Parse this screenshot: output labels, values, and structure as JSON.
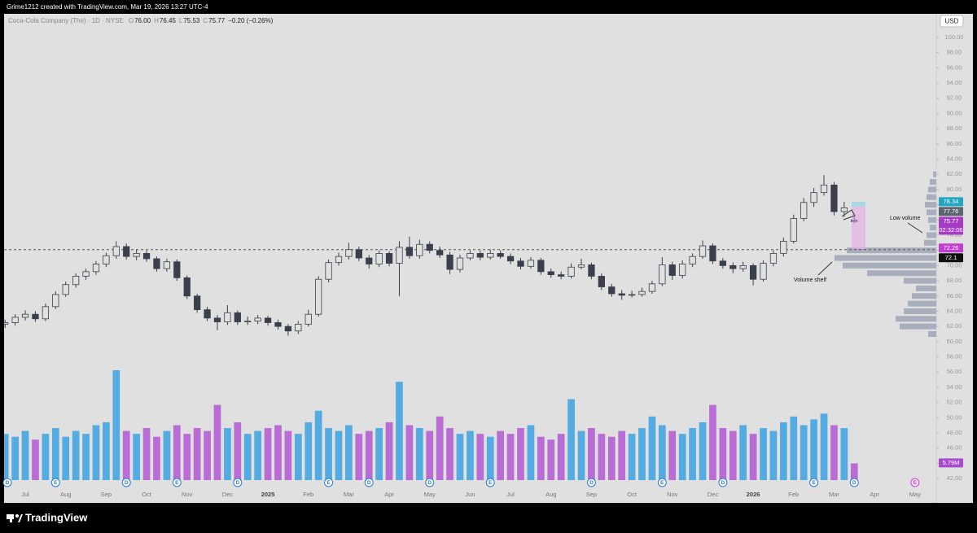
{
  "header": {
    "text": "Grime1212 created with TradingView.com, Mar 19, 2026 13:27 UTC-4"
  },
  "footer": {
    "brand": "TradingView"
  },
  "chart_data": {
    "type": "candlestick",
    "title": "Coca-Cola Company (The) · 1D · NYSE",
    "legend": [
      {
        "key": "O",
        "value": "76.00"
      },
      {
        "key": "H",
        "value": "76.45"
      },
      {
        "key": "L",
        "value": "75.53"
      },
      {
        "key": "C",
        "value": "75.77"
      }
    ],
    "change": "−0.20 (−0.26%)",
    "currency": "USD",
    "categories": [
      null,
      null,
      "Jul",
      null,
      null,
      null,
      "Aug",
      null,
      null,
      null,
      "Sep",
      null,
      null,
      null,
      "Oct",
      null,
      null,
      null,
      "Nov",
      null,
      null,
      null,
      "Dec",
      null,
      null,
      null,
      "2025",
      null,
      null,
      null,
      "Feb",
      null,
      null,
      null,
      "Mar",
      null,
      null,
      null,
      "Apr",
      null,
      null,
      null,
      "May",
      null,
      null,
      null,
      "Jun",
      null,
      null,
      null,
      "Jul",
      null,
      null,
      null,
      "Aug",
      null,
      null,
      null,
      "Sep",
      null,
      null,
      null,
      "Oct",
      null,
      null,
      null,
      "Nov",
      null,
      null,
      null,
      "Dec",
      null,
      null,
      null,
      "2026",
      null,
      null,
      null,
      "Feb",
      null,
      null,
      null,
      "Mar",
      null,
      null,
      null,
      "Apr",
      null,
      null,
      null,
      "May"
    ],
    "ohlc": [
      [
        62.3,
        62.9,
        61.8,
        62.5
      ],
      [
        62.5,
        63.6,
        62.1,
        63.2
      ],
      [
        63.2,
        64.1,
        62.8,
        63.6
      ],
      [
        63.6,
        64.0,
        62.6,
        63.0
      ],
      [
        63.0,
        65.0,
        62.7,
        64.6
      ],
      [
        64.6,
        66.6,
        64.3,
        66.2
      ],
      [
        66.2,
        67.9,
        65.9,
        67.5
      ],
      [
        67.5,
        69.0,
        67.1,
        68.6
      ],
      [
        68.6,
        69.6,
        68.1,
        69.2
      ],
      [
        69.2,
        70.6,
        68.8,
        70.2
      ],
      [
        70.2,
        71.7,
        69.8,
        71.3
      ],
      [
        71.3,
        73.2,
        70.9,
        72.5
      ],
      [
        72.5,
        72.9,
        70.8,
        71.2
      ],
      [
        71.2,
        72.1,
        70.7,
        71.6
      ],
      [
        71.6,
        72.0,
        70.5,
        70.9
      ],
      [
        70.9,
        71.2,
        69.2,
        69.6
      ],
      [
        69.6,
        70.9,
        69.2,
        70.5
      ],
      [
        70.5,
        70.8,
        68.0,
        68.4
      ],
      [
        68.4,
        68.7,
        65.6,
        66.0
      ],
      [
        66.0,
        66.3,
        63.8,
        64.2
      ],
      [
        64.2,
        64.6,
        62.7,
        63.1
      ],
      [
        63.1,
        63.5,
        61.5,
        62.6
      ],
      [
        62.6,
        64.8,
        62.2,
        63.8
      ],
      [
        63.8,
        64.1,
        62.2,
        62.6
      ],
      [
        62.6,
        63.3,
        62.2,
        62.7
      ],
      [
        62.7,
        63.5,
        62.3,
        63.1
      ],
      [
        63.1,
        63.4,
        62.1,
        62.5
      ],
      [
        62.5,
        62.9,
        61.6,
        62.0
      ],
      [
        62.0,
        62.3,
        60.8,
        61.4
      ],
      [
        61.4,
        62.7,
        61.0,
        62.3
      ],
      [
        62.3,
        64.2,
        62.0,
        63.6
      ],
      [
        63.6,
        68.6,
        63.3,
        68.2
      ],
      [
        68.2,
        70.8,
        67.8,
        70.4
      ],
      [
        70.4,
        71.7,
        70.0,
        71.2
      ],
      [
        71.2,
        73.0,
        70.8,
        72.1
      ],
      [
        72.1,
        72.5,
        70.6,
        71.0
      ],
      [
        71.0,
        71.4,
        69.6,
        70.2
      ],
      [
        70.2,
        72.0,
        69.8,
        71.6
      ],
      [
        71.6,
        71.9,
        69.9,
        70.3
      ],
      [
        70.3,
        73.2,
        66.0,
        72.4
      ],
      [
        72.4,
        73.8,
        70.9,
        71.3
      ],
      [
        71.3,
        73.4,
        70.9,
        72.8
      ],
      [
        72.8,
        73.2,
        71.6,
        72.0
      ],
      [
        72.0,
        72.5,
        71.0,
        71.4
      ],
      [
        71.4,
        71.8,
        68.9,
        69.5
      ],
      [
        69.5,
        71.4,
        69.1,
        71.0
      ],
      [
        71.0,
        72.0,
        70.7,
        71.6
      ],
      [
        71.6,
        72.0,
        70.7,
        71.1
      ],
      [
        71.1,
        72.1,
        70.8,
        71.6
      ],
      [
        71.6,
        72.0,
        70.9,
        71.2
      ],
      [
        71.2,
        71.6,
        70.2,
        70.6
      ],
      [
        70.6,
        71.0,
        69.5,
        69.9
      ],
      [
        69.9,
        71.1,
        69.6,
        70.7
      ],
      [
        70.7,
        71.0,
        68.8,
        69.2
      ],
      [
        69.2,
        69.6,
        68.4,
        68.8
      ],
      [
        68.8,
        69.2,
        68.2,
        68.6
      ],
      [
        68.6,
        70.3,
        68.3,
        69.8
      ],
      [
        69.8,
        70.9,
        69.5,
        70.1
      ],
      [
        70.1,
        70.4,
        68.2,
        68.6
      ],
      [
        68.6,
        69.0,
        66.8,
        67.2
      ],
      [
        67.2,
        67.6,
        65.9,
        66.3
      ],
      [
        66.3,
        66.8,
        65.5,
        66.1
      ],
      [
        66.1,
        66.7,
        65.8,
        66.2
      ],
      [
        66.2,
        67.1,
        65.9,
        66.6
      ],
      [
        66.6,
        68.0,
        66.3,
        67.6
      ],
      [
        67.6,
        71.1,
        67.3,
        70.1
      ],
      [
        70.1,
        70.5,
        68.1,
        68.7
      ],
      [
        68.7,
        70.7,
        68.3,
        70.2
      ],
      [
        70.2,
        71.6,
        69.8,
        71.2
      ],
      [
        71.2,
        73.3,
        70.9,
        72.6
      ],
      [
        72.6,
        72.9,
        70.2,
        70.6
      ],
      [
        70.6,
        71.0,
        69.6,
        70.0
      ],
      [
        70.0,
        70.4,
        69.0,
        69.6
      ],
      [
        69.6,
        70.5,
        69.2,
        70.0
      ],
      [
        70.0,
        70.3,
        67.4,
        68.2
      ],
      [
        68.2,
        70.7,
        67.9,
        70.3
      ],
      [
        70.3,
        72.0,
        69.9,
        71.6
      ],
      [
        71.6,
        73.7,
        71.2,
        73.2
      ],
      [
        73.2,
        76.7,
        72.9,
        76.2
      ],
      [
        76.2,
        78.9,
        75.8,
        78.3
      ],
      [
        78.3,
        80.2,
        77.7,
        79.6
      ],
      [
        79.6,
        81.9,
        79.2,
        80.6
      ],
      [
        80.6,
        81.0,
        76.6,
        77.1
      ],
      [
        77.1,
        78.4,
        76.4,
        77.6
      ],
      [
        76.0,
        76.45,
        75.53,
        75.77
      ],
      null,
      null,
      null,
      null,
      null,
      null
    ],
    "candle_color": "#3a3f4b",
    "volume": {
      "up_color": "#3aa1e0",
      "down_color": "#b257d0",
      "values": [
        16,
        15,
        17,
        14,
        16,
        18,
        15,
        17,
        16,
        19,
        20,
        38,
        17,
        16,
        18,
        15,
        17,
        19,
        16,
        18,
        17,
        26,
        18,
        20,
        16,
        17,
        18,
        19,
        17,
        16,
        20,
        24,
        18,
        17,
        19,
        16,
        17,
        18,
        20,
        34,
        19,
        18,
        17,
        22,
        18,
        16,
        17,
        16,
        15,
        17,
        16,
        18,
        19,
        15,
        14,
        16,
        28,
        17,
        18,
        16,
        15,
        17,
        16,
        18,
        22,
        19,
        17,
        16,
        18,
        20,
        26,
        18,
        17,
        19,
        16,
        18,
        17,
        20,
        22,
        19,
        21,
        23,
        19,
        18,
        5.79,
        null,
        null,
        null,
        null,
        null,
        null
      ]
    },
    "volume_profile": {
      "color": "#a9aebd",
      "levels": [
        61,
        62,
        63,
        64,
        65,
        66,
        67,
        68,
        69,
        70,
        71,
        72,
        73,
        74,
        75,
        76,
        77,
        78,
        79,
        80,
        81,
        82
      ],
      "values": [
        10,
        45,
        50,
        40,
        35,
        30,
        25,
        40,
        85,
        115,
        125,
        110,
        15,
        12,
        8,
        10,
        12,
        14,
        12,
        10,
        8,
        4
      ]
    },
    "events": [
      {
        "index": 0,
        "label": "D"
      },
      {
        "index": 5,
        "label": "E"
      },
      {
        "index": 12,
        "label": "D"
      },
      {
        "index": 17,
        "label": "E"
      },
      {
        "index": 23,
        "label": "D"
      },
      {
        "index": 32,
        "label": "E"
      },
      {
        "index": 36,
        "label": "D"
      },
      {
        "index": 42,
        "label": "D"
      },
      {
        "index": 48,
        "label": "E"
      },
      {
        "index": 58,
        "label": "D"
      },
      {
        "index": 65,
        "label": "E"
      },
      {
        "index": 71,
        "label": "D"
      },
      {
        "index": 80,
        "label": "E"
      },
      {
        "index": 84,
        "label": "D"
      },
      {
        "index": 90,
        "label": "E"
      }
    ],
    "tags": [
      {
        "value": 78.34,
        "color": "#1fa6c4"
      },
      {
        "value": 77.76,
        "color": "#5d6470"
      },
      {
        "value": 75.77,
        "color": "#a63cc6",
        "sub": "02:32:06"
      },
      {
        "value": 72.26,
        "color": "#c43cd6"
      },
      {
        "value": 72.1,
        "color": "#111111"
      }
    ],
    "volume_tag": {
      "value": 5.79,
      "label": "5.79M",
      "color": "#a64bd0"
    },
    "hline": 72.1,
    "annotations": [
      "Low volume",
      "Volume shelf"
    ],
    "grid": false,
    "ylim": [
      38.8,
      103.1
    ],
    "yticks": [
      {
        "value": 42,
        "label": "42.00"
      },
      {
        "value": 44,
        "label": "44.00"
      },
      {
        "value": 46,
        "label": "46.00"
      },
      {
        "value": 48,
        "label": "48.00"
      },
      {
        "value": 50,
        "label": "50.00"
      },
      {
        "value": 52,
        "label": "52.00"
      },
      {
        "value": 54,
        "label": "54.00"
      },
      {
        "value": 56,
        "label": "56.00"
      },
      {
        "value": 58,
        "label": "58.00"
      },
      {
        "value": 60,
        "label": "60.00"
      },
      {
        "value": 62,
        "label": "62.00"
      },
      {
        "value": 64,
        "label": "64.00"
      },
      {
        "value": 66,
        "label": "66.00"
      },
      {
        "value": 68,
        "label": "68.00"
      },
      {
        "value": 70,
        "label": "70.00"
      },
      {
        "value": 72,
        "label": "72.00"
      },
      {
        "value": 74,
        "label": "74.00"
      },
      {
        "value": 76,
        "label": "76.00"
      },
      {
        "value": 78,
        "label": "78.00"
      },
      {
        "value": 80,
        "label": "80.00"
      },
      {
        "value": 82,
        "label": "82.00"
      },
      {
        "value": 84,
        "label": "84.00"
      },
      {
        "value": 86,
        "label": "86.00"
      },
      {
        "value": 88,
        "label": "88.00"
      },
      {
        "value": 90,
        "label": "90.00"
      },
      {
        "value": 92,
        "label": "92.00"
      },
      {
        "value": 94,
        "label": "94.00"
      },
      {
        "value": 96,
        "label": "96.00"
      },
      {
        "value": 98,
        "label": "98.00"
      },
      {
        "value": 100,
        "label": "100.00"
      }
    ]
  }
}
